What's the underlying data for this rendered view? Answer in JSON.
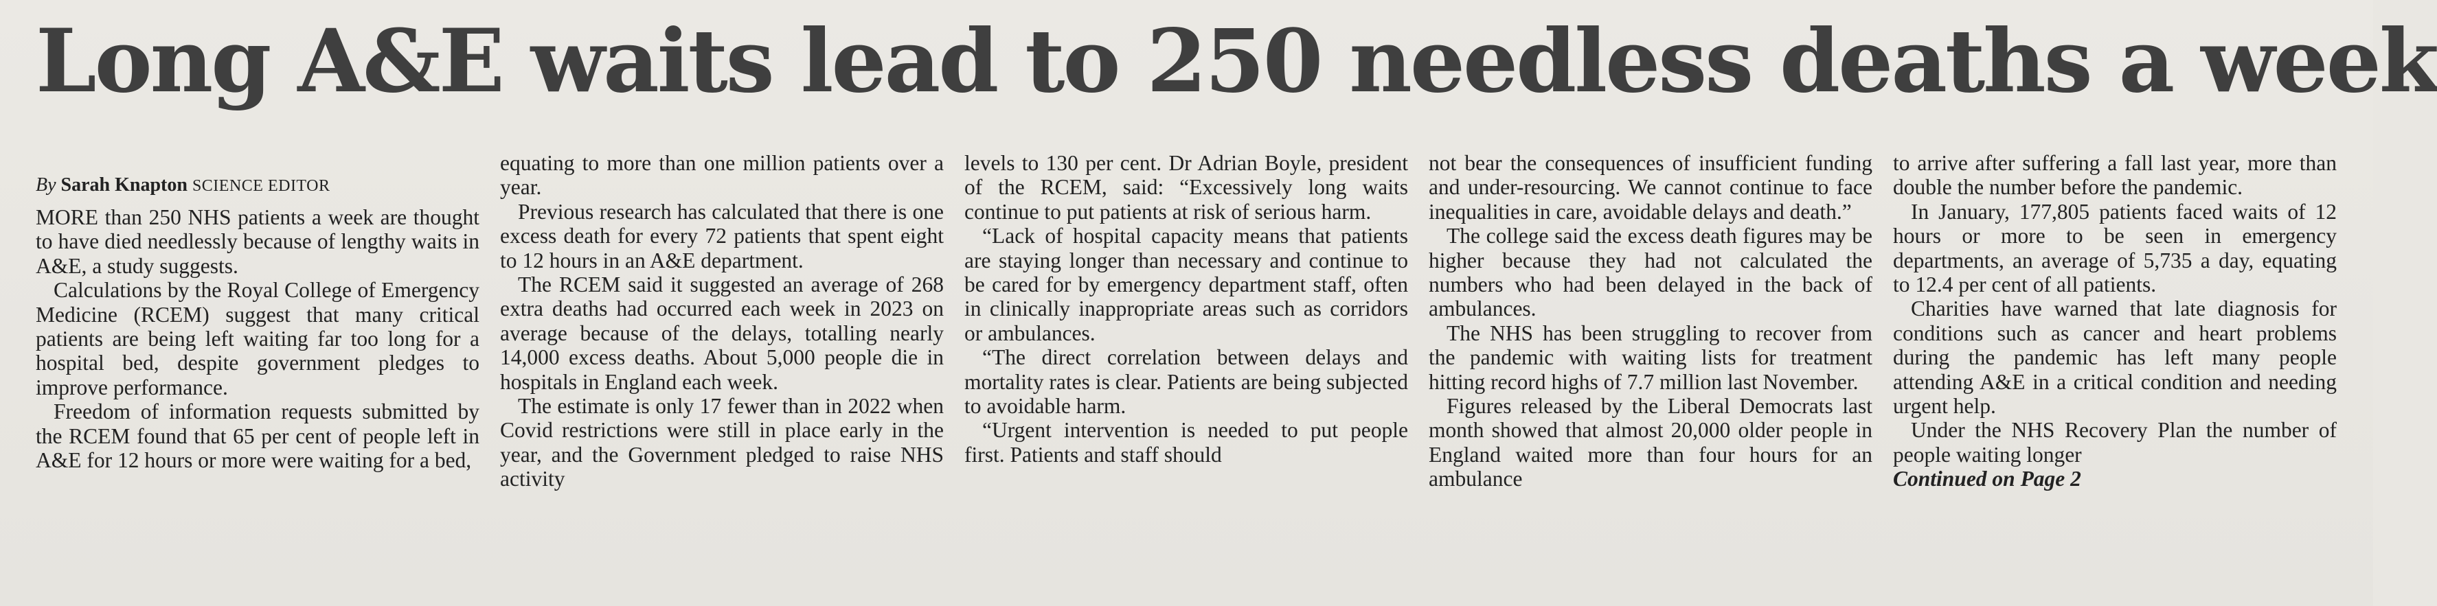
{
  "headline": "Long A&E waits lead to 250 needless deaths a week",
  "byline": {
    "prefix": "By",
    "author": "Sarah Knapton",
    "role": "SCIENCE EDITOR"
  },
  "columns": [
    {
      "paragraphs": [
        "MORE than 250 NHS patients a week are thought to have died needlessly because of lengthy waits in A&E, a study suggests.",
        "Calculations by the Royal College of Emergency Medicine (RCEM) suggest that many critical patients are being left waiting far too long for a hospital bed, despite government pledges to improve performance.",
        "Freedom of information requests submitted by the RCEM found that 65 per cent of people left in A&E for 12 hours or more were waiting for a bed,"
      ]
    },
    {
      "paragraphs": [
        "equating to more than one million patients over a year.",
        "Previous research has calculated that there is one excess death for every 72 patients that spent eight to 12 hours in an A&E department.",
        "The RCEM said it suggested an average of 268 extra deaths had occurred each week in 2023 on average because of the delays, totalling nearly 14,000 excess deaths. About 5,000 people die in hospitals in England each week.",
        "The estimate is only 17 fewer than in 2022 when Covid restrictions were still in place early in the year, and the Government pledged to raise NHS activity"
      ]
    },
    {
      "paragraphs": [
        "levels to 130 per cent. Dr Adrian Boyle, president of the RCEM, said: “Excessively long waits continue to put patients at risk of serious harm.",
        "“Lack of hospital capacity means that patients are staying longer than necessary and continue to be cared for by emergency department staff, often in clinically inappropriate areas such as corridors or ambulances.",
        "“The direct correlation between delays and mortality rates is clear. Patients are being subjected to avoidable harm.",
        "“Urgent intervention is needed to put people first. Patients and staff should"
      ]
    },
    {
      "paragraphs": [
        "not bear the consequences of insufficient funding and under-resourcing. We cannot continue to face inequalities in care, avoidable delays and death.”",
        "The college said the excess death figures may be higher because they had not calculated the numbers who had been delayed in the back of ambulances.",
        "The NHS has been struggling to recover from the pandemic with waiting lists for treatment hitting record highs of 7.7 million last November.",
        "Figures released by the Liberal Democrats last month showed that almost 20,000 older people in England waited more than four hours for an ambulance"
      ]
    },
    {
      "paragraphs": [
        "to arrive after suffering a fall last year, more than double the number before the pandemic.",
        "In January, 177,805 patients faced waits of 12 hours or more to be seen in emergency departments, an average of 5,735 a day, equating to 12.4 per cent of all patients.",
        "Charities have warned that late diagnosis for conditions such as cancer and heart problems during the pandemic has left many people attending A&E in a critical condition and needing urgent help.",
        "Under the NHS Recovery Plan the number of people waiting longer"
      ],
      "continued": "Continued on Page 2"
    }
  ]
}
